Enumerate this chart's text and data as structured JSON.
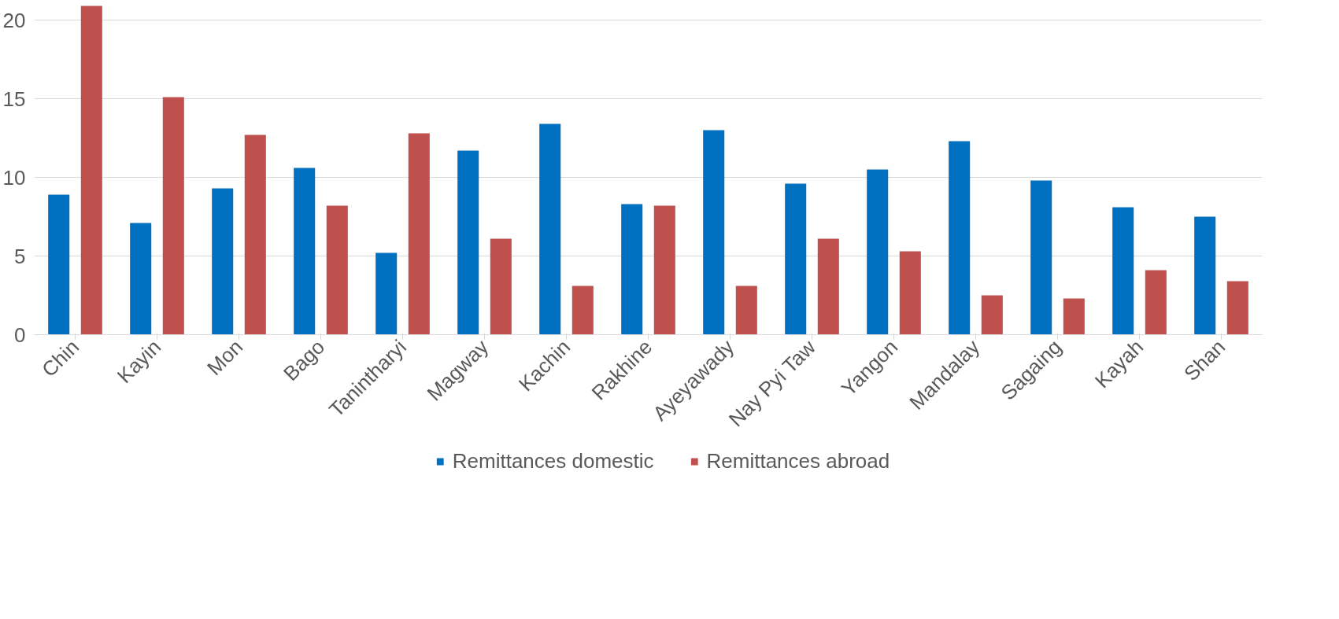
{
  "chart_data": {
    "type": "bar",
    "categories": [
      "Chin",
      "Kayin",
      "Mon",
      "Bago",
      "Tanintharyi",
      "Magway",
      "Kachin",
      "Rakhine",
      "Ayeyawady",
      "Nay Pyi Taw",
      "Yangon",
      "Mandalay",
      "Sagaing",
      "Kayah",
      "Shan"
    ],
    "series": [
      {
        "name": "Remittances domestic",
        "color": "#0070c0",
        "values": [
          8.9,
          7.1,
          9.3,
          10.6,
          5.2,
          11.7,
          13.4,
          8.3,
          13.0,
          9.6,
          10.5,
          12.3,
          9.8,
          8.1,
          7.5
        ]
      },
      {
        "name": "Remittances abroad",
        "color": "#c0504d",
        "values": [
          20.9,
          15.1,
          12.7,
          8.2,
          12.8,
          6.1,
          3.1,
          8.2,
          3.1,
          6.1,
          5.3,
          2.5,
          2.3,
          4.1,
          3.4
        ]
      }
    ],
    "ylim": [
      0,
      21
    ],
    "yticks": [
      0,
      5,
      10,
      15,
      20
    ],
    "grid": "y",
    "legend": "bottom"
  }
}
